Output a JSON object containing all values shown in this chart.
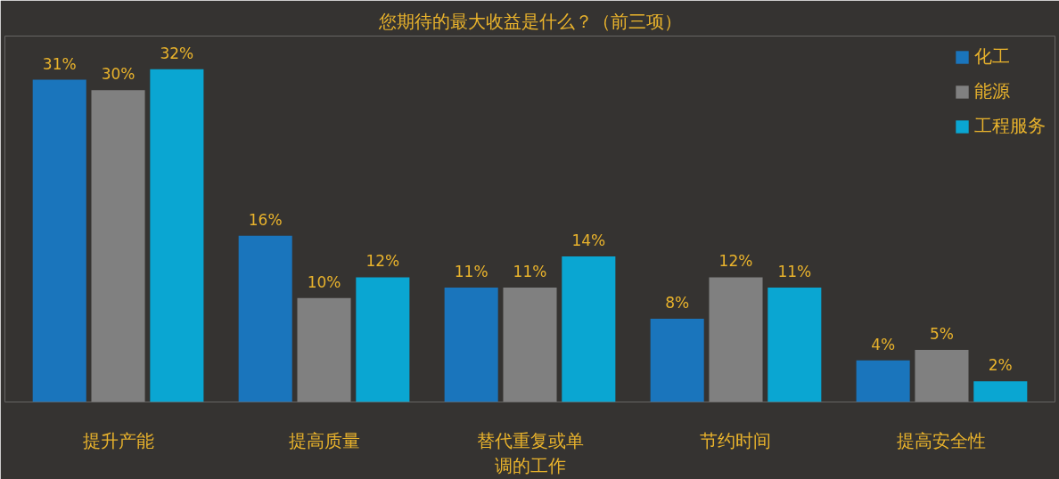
{
  "chart_data": {
    "type": "bar",
    "title": "您期待的最大收益是什么？（前三项）",
    "categories": [
      "提升产能",
      "提高质量",
      "替代重复或单调的工作",
      "节约时间",
      "提高安全性"
    ],
    "series": [
      {
        "name": "化工",
        "color": "#1a75bc",
        "values": [
          31,
          16,
          11,
          8,
          4
        ],
        "value_labels": [
          "31%",
          "16%",
          "11%",
          "8%",
          "4%"
        ]
      },
      {
        "name": "能源",
        "color": "#808080",
        "values": [
          30,
          10,
          11,
          12,
          5
        ],
        "value_labels": [
          "30%",
          "10%",
          "11%",
          "12%",
          "5%"
        ]
      },
      {
        "name": "工程服务",
        "color": "#0aa6d2",
        "values": [
          32,
          12,
          14,
          11,
          2
        ],
        "value_labels": [
          "32%",
          "12%",
          "14%",
          "11%",
          "2%"
        ]
      }
    ],
    "grid": false,
    "legend": "top right"
  }
}
